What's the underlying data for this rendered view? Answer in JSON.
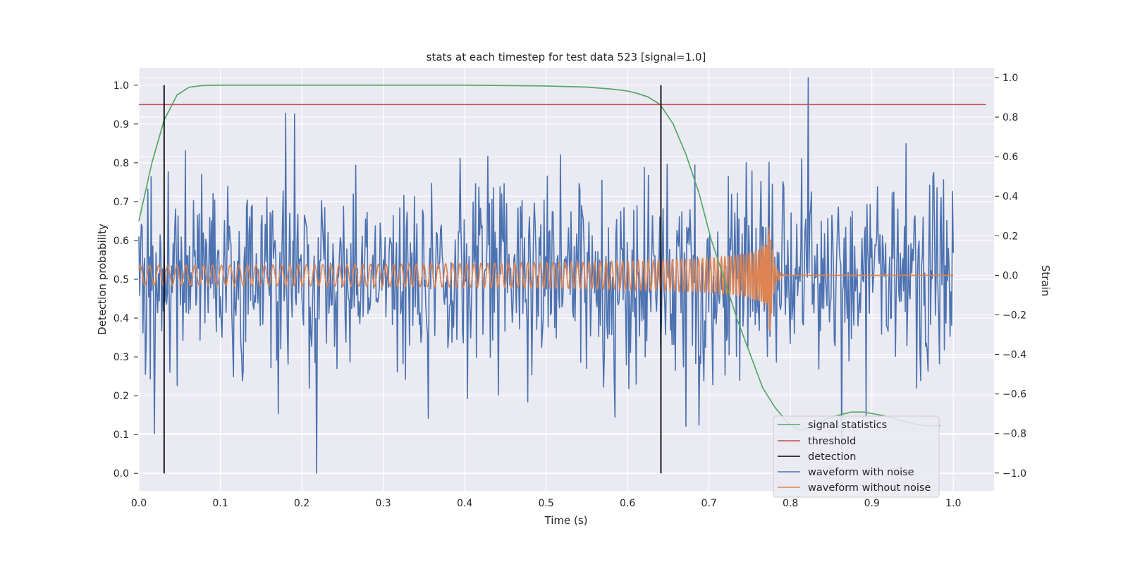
{
  "chart_data": {
    "type": "line",
    "title": "stats at each timestep for test data 523 [signal=1.0]",
    "xlabel": "Time (s)",
    "ylabel": "Detection probability",
    "y2label": "Strain",
    "xlim": [
      0.0,
      1.05
    ],
    "ylim": [
      -0.045,
      1.045
    ],
    "y2lim": [
      -1.09,
      1.05
    ],
    "x_ticks": [
      "0.0",
      "0.1",
      "0.2",
      "0.3",
      "0.4",
      "0.5",
      "0.6",
      "0.7",
      "0.8",
      "0.9",
      "1.0"
    ],
    "y_ticks": [
      "0.0",
      "0.1",
      "0.2",
      "0.3",
      "0.4",
      "0.5",
      "0.6",
      "0.7",
      "0.8",
      "0.9",
      "1.0"
    ],
    "y2_ticks": [
      "-1.0",
      "-0.8",
      "-0.6",
      "-0.4",
      "-0.2",
      "0.0",
      "0.2",
      "0.4",
      "0.6",
      "0.8",
      "1.0"
    ],
    "grid": true,
    "legend_position": "lower-right",
    "legend": [
      "signal statistics",
      "threshold",
      "detection",
      "waveform with noise",
      "waveform without noise"
    ],
    "colors": {
      "signal_statistics": "#55a868",
      "threshold": "#c44e52",
      "detection": "#000000",
      "waveform_with_noise": "#4c72b0",
      "waveform_without_noise": "#dd8452",
      "plot_background": "#eaeaf2"
    },
    "series": [
      {
        "name": "signal statistics",
        "axis": "left",
        "x": [
          0.0,
          0.016,
          0.031,
          0.047,
          0.062,
          0.078,
          0.1,
          0.2,
          0.3,
          0.4,
          0.5,
          0.55,
          0.58,
          0.6,
          0.61,
          0.625,
          0.64,
          0.656,
          0.672,
          0.688,
          0.703,
          0.719,
          0.734,
          0.75,
          0.766,
          0.781,
          0.797,
          0.812,
          0.828,
          0.844,
          0.859,
          0.875,
          0.89,
          0.906,
          0.922,
          0.937,
          0.953,
          0.969,
          0.984
        ],
        "y": [
          0.65,
          0.8,
          0.91,
          0.975,
          0.995,
          0.999,
          1.0,
          1.0,
          1.0,
          1.0,
          0.998,
          0.995,
          0.99,
          0.985,
          0.98,
          0.97,
          0.95,
          0.9,
          0.82,
          0.72,
          0.6,
          0.5,
          0.4,
          0.31,
          0.22,
          0.17,
          0.13,
          0.11,
          0.12,
          0.14,
          0.15,
          0.158,
          0.158,
          0.152,
          0.145,
          0.135,
          0.127,
          0.122,
          0.123
        ]
      },
      {
        "name": "threshold",
        "axis": "left",
        "x": [
          0.0,
          1.04
        ],
        "y": [
          0.95,
          0.95
        ]
      },
      {
        "name": "detection",
        "axis": "left",
        "segments": [
          {
            "x": 0.031,
            "y": [
              0.0,
              1.0
            ]
          },
          {
            "x": 0.641,
            "y": [
              0.0,
              1.0
            ]
          }
        ]
      },
      {
        "name": "waveform with noise",
        "axis": "right",
        "x_range": [
          0.0,
          1.0
        ],
        "n_points": 1000,
        "y_range": [
          -1.0,
          1.0
        ],
        "approx_std": 0.25,
        "notable_points": [
          [
            0.218,
            -1.0
          ],
          [
            0.822,
            1.0
          ],
          [
            0.18,
            0.82
          ],
          [
            0.863,
            -0.88
          ]
        ]
      },
      {
        "name": "waveform without noise",
        "axis": "right",
        "x_range": [
          0.0,
          1.0
        ],
        "amplitude_start": 0.05,
        "chirp_peak_time": 0.775,
        "amplitude_peak": 0.3,
        "after_merger_value": 0.0
      }
    ]
  }
}
